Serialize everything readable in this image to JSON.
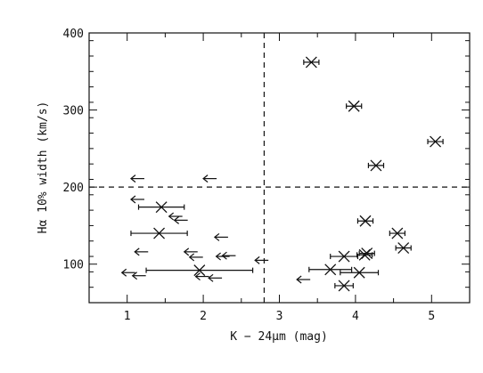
{
  "chart_data": {
    "type": "scatter",
    "title": "",
    "xlabel": "K − 24μm (mag)",
    "ylabel": "Hα 10% width (km/s)",
    "xlim": [
      0.5,
      5.5
    ],
    "ylim": [
      50,
      400
    ],
    "xticks": [
      1,
      2,
      3,
      4,
      5
    ],
    "xtick_labels": [
      "1",
      "2",
      "3",
      "4",
      "5"
    ],
    "yticks": [
      100,
      200,
      300,
      400
    ],
    "ytick_labels": [
      "100",
      "200",
      "300",
      "400"
    ],
    "grid": false,
    "reference_lines": {
      "vertical_x": 2.8,
      "horizontal_y": 200
    },
    "series": [
      {
        "marker": "x",
        "points": [
          {
            "x": 3.42,
            "y": 362,
            "xerr": 0.1
          },
          {
            "x": 3.98,
            "y": 305,
            "xerr": 0.1
          },
          {
            "x": 5.05,
            "y": 259,
            "xerr": 0.1
          },
          {
            "x": 4.27,
            "y": 228,
            "xerr": 0.1
          },
          {
            "x": 1.45,
            "y": 174,
            "xerr": 0.3
          },
          {
            "x": 1.42,
            "y": 140,
            "xerr": 0.37
          },
          {
            "x": 4.13,
            "y": 156,
            "xerr": 0.1
          },
          {
            "x": 4.55,
            "y": 140,
            "xerr": 0.1
          },
          {
            "x": 4.63,
            "y": 121,
            "xerr": 0.1
          },
          {
            "x": 3.85,
            "y": 110,
            "xerr": 0.18
          },
          {
            "x": 4.12,
            "y": 112,
            "xerr": 0.1
          },
          {
            "x": 4.15,
            "y": 114,
            "xerr": 0.1
          },
          {
            "x": 1.95,
            "y": 92,
            "xerr": 0.7
          },
          {
            "x": 3.67,
            "y": 93,
            "xerr": 0.28
          },
          {
            "x": 4.05,
            "y": 89,
            "xerr": 0.25
          },
          {
            "x": 3.85,
            "y": 72,
            "xerr": 0.12
          }
        ]
      },
      {
        "marker": "left-arrow",
        "points": [
          {
            "x": 1.05,
            "y": 211
          },
          {
            "x": 2.0,
            "y": 211
          },
          {
            "x": 1.05,
            "y": 184
          },
          {
            "x": 1.55,
            "y": 162
          },
          {
            "x": 1.62,
            "y": 157
          },
          {
            "x": 2.15,
            "y": 135
          },
          {
            "x": 1.1,
            "y": 116
          },
          {
            "x": 1.75,
            "y": 116
          },
          {
            "x": 1.82,
            "y": 109
          },
          {
            "x": 2.17,
            "y": 110
          },
          {
            "x": 2.25,
            "y": 111
          },
          {
            "x": 2.68,
            "y": 105
          },
          {
            "x": 0.93,
            "y": 89
          },
          {
            "x": 1.07,
            "y": 85
          },
          {
            "x": 1.9,
            "y": 84
          },
          {
            "x": 2.07,
            "y": 82
          },
          {
            "x": 3.23,
            "y": 80
          }
        ]
      }
    ]
  }
}
